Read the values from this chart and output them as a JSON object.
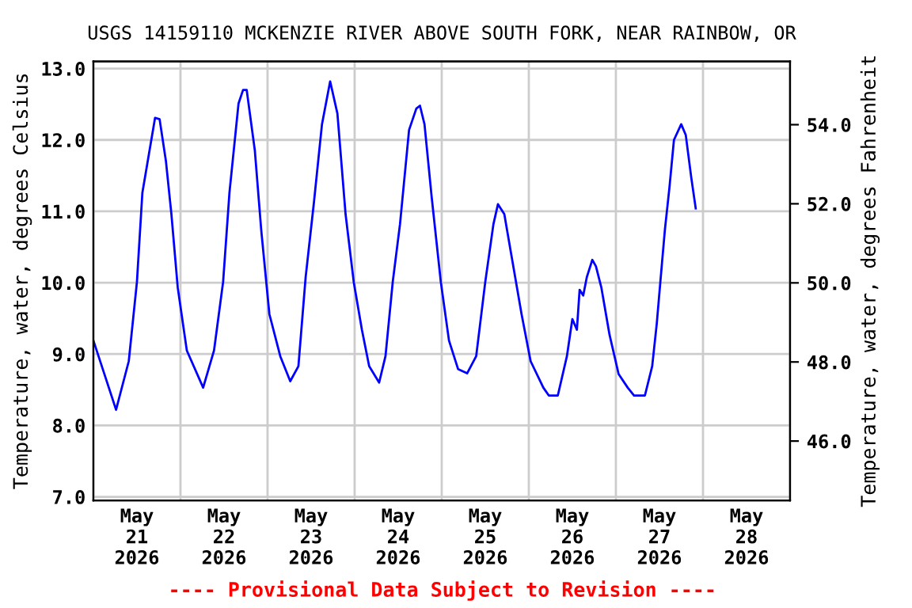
{
  "chart_data": {
    "type": "line",
    "title": "USGS 14159110 MCKENZIE RIVER ABOVE SOUTH FORK, NEAR RAINBOW, OR",
    "ylabel": "Temperature, water, degrees Celsius",
    "y2label": "Temperature, water, degrees Fahrenheit",
    "annotations": [
      "---- Provisional Data Subject to Revision ----"
    ],
    "x": [
      "2026-05-21T00:00",
      "2026-05-21T06:15",
      "2026-05-21T09:45",
      "2026-05-21T12:00",
      "2026-05-21T13:30",
      "2026-05-21T17:00",
      "2026-05-21T18:15",
      "2026-05-21T20:00",
      "2026-05-21T21:30",
      "2026-05-21T23:15",
      "2026-05-22T01:45",
      "2026-05-22T06:15",
      "2026-05-22T09:15",
      "2026-05-22T11:45",
      "2026-05-22T13:30",
      "2026-05-22T16:00",
      "2026-05-22T17:15",
      "2026-05-22T18:15",
      "2026-05-22T20:30",
      "2026-05-22T22:15",
      "2026-05-23T00:30",
      "2026-05-23T03:30",
      "2026-05-23T06:15",
      "2026-05-23T08:30",
      "2026-05-23T10:30",
      "2026-05-23T12:45",
      "2026-05-23T15:00",
      "2026-05-23T17:15",
      "2026-05-23T19:15",
      "2026-05-23T21:30",
      "2026-05-23T23:45",
      "2026-05-24T02:00",
      "2026-05-24T04:00",
      "2026-05-24T06:45",
      "2026-05-24T08:30",
      "2026-05-24T10:30",
      "2026-05-24T12:30",
      "2026-05-24T15:00",
      "2026-05-24T17:00",
      "2026-05-24T18:00",
      "2026-05-24T19:15",
      "2026-05-24T21:15",
      "2026-05-24T23:45",
      "2026-05-25T02:00",
      "2026-05-25T04:30",
      "2026-05-25T07:00",
      "2026-05-25T09:30",
      "2026-05-25T12:00",
      "2026-05-25T14:15",
      "2026-05-25T15:30",
      "2026-05-25T17:15",
      "2026-05-25T19:15",
      "2026-05-25T22:00",
      "2026-05-26T00:30",
      "2026-05-26T04:00",
      "2026-05-26T05:30",
      "2026-05-26T08:00",
      "2026-05-26T10:30",
      "2026-05-26T12:00",
      "2026-05-26T13:15",
      "2026-05-26T14:00",
      "2026-05-26T15:00",
      "2026-05-26T16:00",
      "2026-05-26T17:30",
      "2026-05-26T18:30",
      "2026-05-26T20:00",
      "2026-05-26T22:15",
      "2026-05-27T00:45",
      "2026-05-27T03:15",
      "2026-05-27T05:00",
      "2026-05-27T08:00",
      "2026-05-27T10:00",
      "2026-05-27T11:15",
      "2026-05-27T12:15",
      "2026-05-27T13:30",
      "2026-05-27T14:45",
      "2026-05-27T16:00",
      "2026-05-27T18:00",
      "2026-05-27T19:15",
      "2026-05-27T20:45",
      "2026-05-27T22:00"
    ],
    "series": [
      {
        "color": "#0000ff",
        "values": [
          9.19,
          8.22,
          8.9,
          10.01,
          11.26,
          12.31,
          12.29,
          11.7,
          10.96,
          9.93,
          9.05,
          8.53,
          9.05,
          10.01,
          11.26,
          12.51,
          12.7,
          12.7,
          11.85,
          10.74,
          9.56,
          8.97,
          8.62,
          8.83,
          10.08,
          11.11,
          12.22,
          12.82,
          12.37,
          10.96,
          10.01,
          9.34,
          8.83,
          8.6,
          8.97,
          10.01,
          10.82,
          12.14,
          12.44,
          12.48,
          12.22,
          11.19,
          10.01,
          9.19,
          8.79,
          8.73,
          8.97,
          10.01,
          10.82,
          11.1,
          10.96,
          10.37,
          9.56,
          8.9,
          8.53,
          8.42,
          8.42,
          8.97,
          9.49,
          9.34,
          9.9,
          9.82,
          10.08,
          10.32,
          10.23,
          9.93,
          9.27,
          8.72,
          8.53,
          8.42,
          8.42,
          8.83,
          9.42,
          10.01,
          10.74,
          11.33,
          12.0,
          12.22,
          12.07,
          11.48,
          11.04
        ]
      }
    ],
    "xlim": [
      "2026-05-21T00:00",
      "2026-05-29T00:00"
    ],
    "xticks": [
      {
        "value": "2026-05-21T00:00",
        "label": null
      },
      {
        "value": "2026-05-21T12:00",
        "label": "May\n21\n2026"
      },
      {
        "value": "2026-05-22T00:00",
        "label": null
      },
      {
        "value": "2026-05-22T12:00",
        "label": "May\n22\n2026"
      },
      {
        "value": "2026-05-23T00:00",
        "label": null
      },
      {
        "value": "2026-05-23T12:00",
        "label": "May\n23\n2026"
      },
      {
        "value": "2026-05-24T00:00",
        "label": null
      },
      {
        "value": "2026-05-24T12:00",
        "label": "May\n24\n2026"
      },
      {
        "value": "2026-05-25T00:00",
        "label": null
      },
      {
        "value": "2026-05-25T12:00",
        "label": "May\n25\n2026"
      },
      {
        "value": "2026-05-26T00:00",
        "label": null
      },
      {
        "value": "2026-05-26T12:00",
        "label": "May\n26\n2026"
      },
      {
        "value": "2026-05-27T00:00",
        "label": null
      },
      {
        "value": "2026-05-27T12:00",
        "label": "May\n27\n2026"
      },
      {
        "value": "2026-05-28T00:00",
        "label": null
      },
      {
        "value": "2026-05-28T12:00",
        "label": "May\n28\n2026"
      },
      {
        "value": "2026-05-29T00:00",
        "label": null
      }
    ],
    "ylim": [
      6.95,
      13.1
    ],
    "yticks": [
      {
        "value": 7,
        "label": "7.0"
      },
      {
        "value": 8,
        "label": "8.0"
      },
      {
        "value": 9,
        "label": "9.0"
      },
      {
        "value": 10,
        "label": "10.0"
      },
      {
        "value": 11,
        "label": "11.0"
      },
      {
        "value": 12,
        "label": "12.0"
      },
      {
        "value": 13,
        "label": "13.0"
      }
    ],
    "y2lim": [
      44.5,
      55.6
    ],
    "y2ticks": [
      {
        "value": 46,
        "label": "46.0"
      },
      {
        "value": 48,
        "label": "48.0"
      },
      {
        "value": 50,
        "label": "50.0"
      },
      {
        "value": 52,
        "label": "52.0"
      },
      {
        "value": 54,
        "label": "54.0"
      }
    ],
    "grid": true,
    "legend": false,
    "marker": "none",
    "line_style": "solid"
  }
}
